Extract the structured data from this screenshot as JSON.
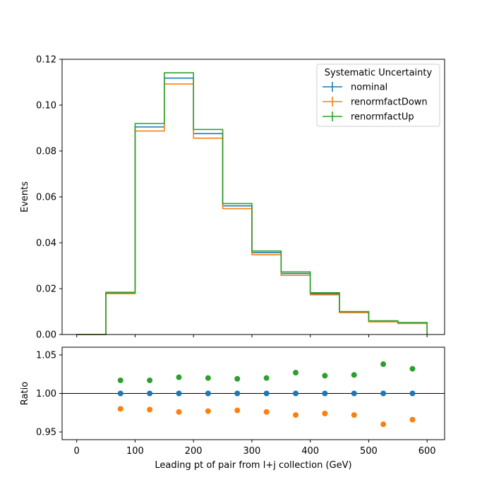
{
  "chart_data": [
    {
      "type": "step",
      "title": "",
      "xlabel": "",
      "ylabel": "Events",
      "xlim": [
        -25,
        630
      ],
      "ylim": [
        0,
        0.12
      ],
      "xticks": [
        0,
        100,
        200,
        300,
        400,
        500,
        600
      ],
      "yticks": [
        0.0,
        0.02,
        0.04,
        0.06,
        0.08,
        0.1,
        0.12
      ],
      "ytick_labels": [
        "0.00",
        "0.02",
        "0.04",
        "0.06",
        "0.08",
        "0.10",
        "0.12"
      ],
      "bin_edges": [
        0,
        50,
        100,
        150,
        200,
        250,
        300,
        350,
        400,
        450,
        500,
        550,
        600
      ],
      "legend": {
        "title": "Systematic Uncertainty",
        "placement": "top-right"
      },
      "series": [
        {
          "name": "nominal",
          "color": "#1f77b4",
          "values": [
            0.0,
            0.0181,
            0.0905,
            0.1118,
            0.0876,
            0.0561,
            0.0357,
            0.0266,
            0.0178,
            0.0098,
            0.0058,
            0.005
          ]
        },
        {
          "name": "renormfactDown",
          "color": "#ff7f0e",
          "values": [
            0.0,
            0.0178,
            0.0887,
            0.1092,
            0.0856,
            0.0549,
            0.0348,
            0.0258,
            0.0173,
            0.0095,
            0.0055,
            0.0048
          ]
        },
        {
          "name": "renormfactUp",
          "color": "#2ca02c",
          "values": [
            0.0,
            0.0184,
            0.092,
            0.1141,
            0.0894,
            0.0571,
            0.0364,
            0.0273,
            0.0182,
            0.01,
            0.006,
            0.0052
          ]
        }
      ]
    },
    {
      "type": "scatter",
      "title": "",
      "xlabel": "Leading pt of pair from l+j collection (GeV)",
      "ylabel": "Ratio",
      "xlim": [
        -25,
        630
      ],
      "ylim": [
        0.94,
        1.06
      ],
      "xticks": [
        0,
        100,
        200,
        300,
        400,
        500,
        600
      ],
      "yticks": [
        0.95,
        1.0,
        1.05
      ],
      "ytick_labels": [
        "0.95",
        "1.00",
        "1.05"
      ],
      "reference_line": 1.0,
      "x": [
        75,
        125,
        175,
        225,
        275,
        325,
        375,
        425,
        475,
        525,
        575
      ],
      "series": [
        {
          "name": "nominal",
          "color": "#1f77b4",
          "values": [
            1.0,
            1.0,
            1.0,
            1.0,
            1.0,
            1.0,
            1.0,
            1.0,
            1.0,
            1.0,
            1.0
          ]
        },
        {
          "name": "renormfactDown",
          "color": "#ff7f0e",
          "values": [
            0.98,
            0.979,
            0.976,
            0.977,
            0.978,
            0.976,
            0.972,
            0.974,
            0.972,
            0.96,
            0.966
          ]
        },
        {
          "name": "renormfactUp",
          "color": "#2ca02c",
          "values": [
            1.017,
            1.017,
            1.021,
            1.02,
            1.019,
            1.02,
            1.027,
            1.023,
            1.024,
            1.038,
            1.032
          ]
        }
      ]
    }
  ]
}
